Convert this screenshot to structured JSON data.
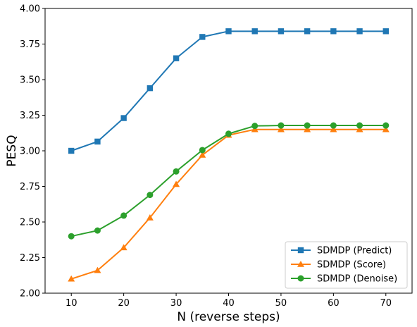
{
  "chart_data": {
    "type": "line",
    "title": "",
    "xlabel": "N (reverse steps)",
    "ylabel": "PESQ",
    "x": [
      10,
      15,
      20,
      25,
      30,
      35,
      40,
      45,
      50,
      55,
      60,
      65,
      70
    ],
    "xlim": [
      5,
      75
    ],
    "ylim": [
      2.0,
      4.0
    ],
    "xticks": [
      10,
      20,
      30,
      40,
      50,
      60,
      70
    ],
    "yticks": [
      "2.00",
      "2.25",
      "2.50",
      "2.75",
      "3.00",
      "3.25",
      "3.50",
      "3.75",
      "4.00"
    ],
    "grid": false,
    "legend_position": "lower-right",
    "series": [
      {
        "name": "SDMDP (Predict)",
        "color": "#1f77b4",
        "marker": "square",
        "values": [
          3.0,
          3.065,
          3.23,
          3.44,
          3.65,
          3.8,
          3.84,
          3.84,
          3.84,
          3.84,
          3.84,
          3.84,
          3.84
        ]
      },
      {
        "name": "SDMDP (Score)",
        "color": "#ff7f0e",
        "marker": "triangle",
        "values": [
          2.1,
          2.16,
          2.32,
          2.53,
          2.765,
          2.97,
          3.11,
          3.15,
          3.15,
          3.15,
          3.15,
          3.15,
          3.15
        ]
      },
      {
        "name": "SDMDP (Denoise)",
        "color": "#2ca02c",
        "marker": "circle",
        "values": [
          2.4,
          2.44,
          2.545,
          2.69,
          2.855,
          3.005,
          3.12,
          3.175,
          3.178,
          3.178,
          3.178,
          3.178,
          3.178
        ]
      }
    ]
  }
}
